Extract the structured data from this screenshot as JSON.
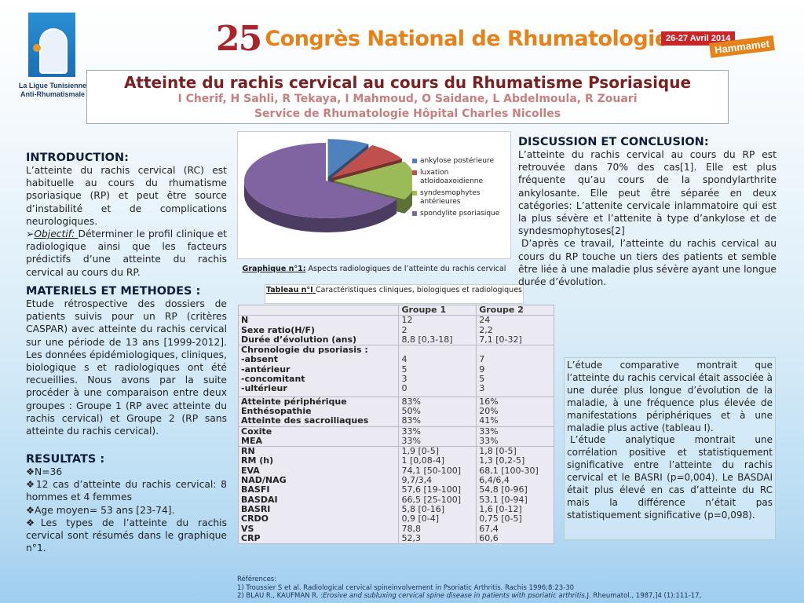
{
  "header": {
    "logo_text": "La Ligue Tunisienne Anti-Rhumatismale",
    "congress_number": "25",
    "congress_name": "Congrès National de Rhumatologie",
    "dates": "26-27 Avril 2014",
    "place": "Hammamet"
  },
  "title": {
    "main": "Atteinte du rachis cervical au cours du Rhumatisme Psoriasique",
    "authors": "I Cherif, H Sahli, R Tekaya, I Mahmoud, O Saidane, L Abdelmoula, R Zouari",
    "affiliation": "Service de Rhumatologie Hôpital Charles Nicolles"
  },
  "introduction": {
    "heading": "INTRODUCTION:",
    "text": "L’atteinte du rachis cervical (RC) est habituelle au cours du rhumatisme psoriasique (RP) et peut être source d’instabilité et de complications neurologiques.",
    "objective_label": "Objectif: ",
    "objective_text": "Déterminer le profil clinique et radiologique ainsi que les facteurs prédictifs d’une atteinte du rachis cervical au cours du RP."
  },
  "methods": {
    "heading": "MATERIELS ET METHODES :",
    "text": "Etude rétrospective des dossiers de patients suivis pour un RP (critères CASPAR) avec atteinte du rachis cervical sur une période de 13 ans [1999-2012]. Les données épidémiologiques, cliniques, biologique s et radiologiques ont été recueillies. Nous avons par la suite procéder à une comparaison entre deux groupes : Groupe 1 (RP avec atteinte du rachis cervical) et Groupe 2 (RP sans atteinte du rachis cervical)."
  },
  "results": {
    "heading": "RESULTATS :",
    "items": [
      "N=36",
      "12 cas d’atteinte du rachis cervical: 8 hommes et 4 femmes",
      "Age moyen= 53 ans [23-74].",
      "Les types de l’atteinte du rachis cervical sont résumés dans le graphique n°1."
    ]
  },
  "chart_data": {
    "type": "pie",
    "style": "3d-exploded",
    "title": "",
    "categories": [
      "ankylose postérieure",
      "luxation atloidoaxoidienne",
      "syndesmophytes antérieures",
      "spondylite psoriasique"
    ],
    "values": [
      8.3,
      8.3,
      16.7,
      66.7
    ],
    "colors": [
      "#4f81bd",
      "#c0504d",
      "#9bbb59",
      "#8064a2"
    ],
    "legend_position": "right"
  },
  "chart_caption": {
    "label": "Graphique n°1:",
    "text": " Aspects radiologiques de l’atteinte du rachis cervical"
  },
  "table": {
    "caption_label": "Tableau n°I ",
    "caption_text": "Caractéristiques cliniques, biologiques et radiologiques",
    "headers": [
      "",
      "Groupe 1",
      "Groupe 2"
    ],
    "groups": [
      [
        [
          "N",
          "12",
          "24"
        ],
        [
          "Sexe ratio(H/F)",
          "2",
          "2,2"
        ],
        [
          "Durée d’évolution (ans)",
          "8,8 [0,3-18]",
          "7,1 [0-32]"
        ]
      ],
      [
        [
          "Chronologie du psoriasis :",
          "",
          ""
        ],
        [
          "-absent",
          "4",
          "7"
        ],
        [
          "-antérieur",
          "5",
          "9"
        ],
        [
          "-concomitant",
          "3",
          "5"
        ],
        [
          "-ultérieur",
          "0",
          "3"
        ]
      ],
      [
        [
          "Atteinte périphérique",
          "83%",
          "16%"
        ],
        [
          "Enthésopathie",
          "50%",
          "20%"
        ],
        [
          "Atteinte des sacroiliaques",
          "83%",
          "41%"
        ]
      ],
      [
        [
          "Coxite",
          "33%",
          "33%"
        ],
        [
          "MEA",
          "33%",
          "33%"
        ]
      ],
      [
        [
          "RN",
          "1,9 [0-5]",
          "1,8 [0-5]"
        ],
        [
          "RM (h)",
          "1 [0,08-4]",
          "1,3 [0,2-5]"
        ],
        [
          "EVA",
          "74,1 [50-100]",
          "68,1 [100-30]"
        ],
        [
          "NAD/NAG",
          "9,7/3,4",
          "6,4/6,4"
        ],
        [
          "BASFI",
          "57,6 [19-100]",
          "54,8 [0-96]"
        ],
        [
          "BASDAI",
          "66,5 [25-100]",
          "53,1 [0-94]"
        ],
        [
          "BASRI",
          "5,8 [0-16]",
          "1,6 [0-12]"
        ],
        [
          "CRDO",
          "0,9 [0-4]",
          "0,75 [0-5]"
        ],
        [
          "VS",
          "78,8",
          "67,4"
        ],
        [
          "CRP",
          "52,3",
          "60,6"
        ]
      ]
    ]
  },
  "discussion": {
    "heading": "DISCUSSION ET CONCLUSION:",
    "p1": "L’atteinte du rachis cervical au cours du RP est retrouvée dans 70% des cas[1]. Elle est plus fréquente qu’au cours de la spondylarthrite ankylosante. Elle peut être séparée en deux catégories: L’attenite cervicale inlammatoire qui est la plus sévère et l’attenite à type d’ankylose et de syndesmophytoses[2]",
    "p2": "D’après ce travail, l’atteinte du rachis cervical au cours du RP touche un tiers des patients et semble être liée à une maladie plus sévère ayant une longue durée d’évolution."
  },
  "comparative": {
    "p1": "L’étude comparative montrait que l’atteinte du rachis cervical était associée à une durée plus longue d’évolution de la maladie, à une fréquence plus élevée de manifestations périphériques et à une maladie plus active (tableau I).",
    "p2": "L’étude analytique montrait une corrélation positive et statistiquement significative entre l’atteinte du rachis cervical et le BASRI (p=0,004). Le BASDAI était plus élevé en cas d’atteinte du RC mais la différence n’était pas statistiquement significative (p=0,098)."
  },
  "references": {
    "heading": "Références:",
    "r1": "1)  Troussier S et al. Radiological cervical spineinvolvement in Psoriatic Arthritis. Rachis 1996;8:23-30",
    "r2_authors": "2) BLAU R., KAUFMAN R. :",
    "r2_title": "Erosive and subluxing cervical spine disease in patients with psoriatic arthritis.",
    "r2_rest": "J. Rheumatol., 1987,]4 (1):111-17,"
  }
}
